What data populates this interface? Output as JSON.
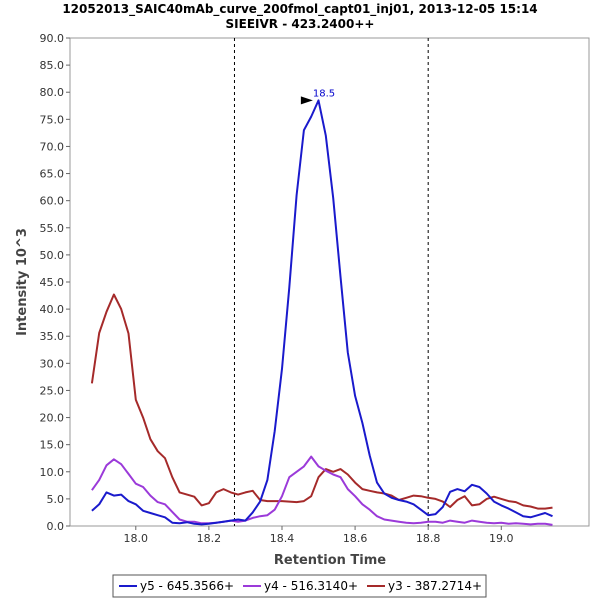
{
  "chart_data": {
    "type": "line",
    "title": "12052013_SAIC40mAb_curve_200fmol_capt01_inj01, 2013-12-05 15:14",
    "subtitle": "SIEEIVR - 423.2400++",
    "xlabel": "Retention Time",
    "ylabel": "Intensity 10^3",
    "xlim": [
      17.82,
      19.24
    ],
    "ylim": [
      0,
      90
    ],
    "xticks": [
      18.0,
      18.2,
      18.4,
      18.6,
      18.8,
      19.0
    ],
    "xtick_labels": [
      "18.0",
      "18.2",
      "18.4",
      "18.6",
      "18.8",
      "19.0"
    ],
    "yticks": [
      0,
      5,
      10,
      15,
      20,
      25,
      30,
      35,
      40,
      45,
      50,
      55,
      60,
      65,
      70,
      75,
      80,
      85,
      90
    ],
    "ytick_labels": [
      "0.0",
      "5.0",
      "10.0",
      "15.0",
      "20.0",
      "25.0",
      "30.0",
      "35.0",
      "40.0",
      "45.0",
      "50.0",
      "55.0",
      "60.0",
      "65.0",
      "70.0",
      "75.0",
      "80.0",
      "85.0",
      "90.0"
    ],
    "grid": false,
    "legend_position": "bottom",
    "vertical_markers": [
      18.27,
      18.8
    ],
    "annotation": {
      "text": "18.5",
      "x": 18.49,
      "y": 78.5,
      "color": "#0000cc"
    },
    "series": [
      {
        "name": "y5 - 645.3566+",
        "color": "#1a1acc",
        "x": [
          17.88,
          17.9,
          17.92,
          17.94,
          17.96,
          17.98,
          18.0,
          18.02,
          18.04,
          18.06,
          18.08,
          18.1,
          18.12,
          18.14,
          18.16,
          18.18,
          18.2,
          18.22,
          18.24,
          18.26,
          18.28,
          18.3,
          18.32,
          18.34,
          18.36,
          18.38,
          18.4,
          18.42,
          18.44,
          18.46,
          18.48,
          18.5,
          18.52,
          18.54,
          18.56,
          18.58,
          18.6,
          18.62,
          18.64,
          18.66,
          18.68,
          18.7,
          18.72,
          18.74,
          18.76,
          18.78,
          18.8,
          18.82,
          18.84,
          18.86,
          18.88,
          18.9,
          18.92,
          18.94,
          18.96,
          18.98,
          19.0,
          19.02,
          19.04,
          19.06,
          19.08,
          19.1,
          19.12,
          19.14
        ],
        "y": [
          2.8,
          4.0,
          6.2,
          5.6,
          5.8,
          4.6,
          4.0,
          2.8,
          2.4,
          2.0,
          1.6,
          0.6,
          0.5,
          0.7,
          0.4,
          0.3,
          0.4,
          0.6,
          0.8,
          1.0,
          1.2,
          1.0,
          2.5,
          4.5,
          8.5,
          17.5,
          29.0,
          44.0,
          61.0,
          73.0,
          75.5,
          78.5,
          72.0,
          60.5,
          46.0,
          32.0,
          24.0,
          19.0,
          13.0,
          8.0,
          6.0,
          5.2,
          4.8,
          4.5,
          4.0,
          3.0,
          2.0,
          2.2,
          3.5,
          6.3,
          6.8,
          6.4,
          7.6,
          7.2,
          6.0,
          4.5,
          3.8,
          3.2,
          2.5,
          1.8,
          1.6,
          2.0,
          2.4,
          1.8
        ]
      },
      {
        "name": "y4 - 516.3140+",
        "color": "#9b3ad9",
        "x": [
          17.88,
          17.9,
          17.92,
          17.94,
          17.96,
          17.98,
          18.0,
          18.02,
          18.04,
          18.06,
          18.08,
          18.1,
          18.12,
          18.14,
          18.16,
          18.18,
          18.2,
          18.22,
          18.24,
          18.26,
          18.28,
          18.3,
          18.32,
          18.34,
          18.36,
          18.38,
          18.4,
          18.42,
          18.44,
          18.46,
          18.48,
          18.5,
          18.52,
          18.54,
          18.56,
          18.58,
          18.6,
          18.62,
          18.64,
          18.66,
          18.68,
          18.7,
          18.72,
          18.74,
          18.76,
          18.78,
          18.8,
          18.82,
          18.84,
          18.86,
          18.88,
          18.9,
          18.92,
          18.94,
          18.96,
          18.98,
          19.0,
          19.02,
          19.04,
          19.06,
          19.08,
          19.1,
          19.12,
          19.14
        ],
        "y": [
          6.6,
          8.5,
          11.2,
          12.3,
          11.4,
          9.6,
          7.8,
          7.2,
          5.6,
          4.4,
          4.0,
          2.6,
          1.2,
          0.8,
          0.8,
          0.5,
          0.5,
          0.6,
          0.8,
          1.0,
          0.8,
          1.0,
          1.5,
          1.8,
          2.0,
          3.0,
          5.5,
          9.0,
          10.0,
          11.0,
          12.8,
          11.0,
          10.2,
          9.5,
          9.0,
          6.8,
          5.5,
          4.0,
          3.0,
          1.8,
          1.2,
          1.0,
          0.8,
          0.6,
          0.5,
          0.6,
          0.8,
          0.8,
          0.6,
          1.0,
          0.8,
          0.6,
          1.0,
          0.8,
          0.6,
          0.5,
          0.6,
          0.4,
          0.5,
          0.4,
          0.3,
          0.4,
          0.4,
          0.2
        ]
      },
      {
        "name": "y3 - 387.2714+",
        "color": "#a52a2a",
        "x": [
          17.88,
          17.9,
          17.92,
          17.94,
          17.96,
          17.98,
          18.0,
          18.02,
          18.04,
          18.06,
          18.08,
          18.1,
          18.12,
          18.14,
          18.16,
          18.18,
          18.2,
          18.22,
          18.24,
          18.26,
          18.28,
          18.3,
          18.32,
          18.34,
          18.36,
          18.38,
          18.4,
          18.42,
          18.44,
          18.46,
          18.48,
          18.5,
          18.52,
          18.54,
          18.56,
          18.58,
          18.6,
          18.62,
          18.64,
          18.66,
          18.68,
          18.7,
          18.72,
          18.74,
          18.76,
          18.78,
          18.8,
          18.82,
          18.84,
          18.86,
          18.88,
          18.9,
          18.92,
          18.94,
          18.96,
          18.98,
          19.0,
          19.02,
          19.04,
          19.06,
          19.08,
          19.1,
          19.12,
          19.14
        ],
        "y": [
          26.3,
          35.6,
          39.5,
          42.7,
          40.0,
          35.5,
          23.3,
          20.0,
          16.0,
          13.8,
          12.5,
          9.0,
          6.2,
          5.8,
          5.4,
          3.8,
          4.2,
          6.2,
          6.8,
          6.2,
          5.8,
          6.2,
          6.5,
          4.8,
          4.6,
          4.6,
          4.6,
          4.5,
          4.4,
          4.6,
          5.5,
          9.0,
          10.5,
          10.0,
          10.5,
          9.5,
          8.0,
          6.8,
          6.5,
          6.2,
          6.0,
          5.6,
          4.8,
          5.2,
          5.6,
          5.5,
          5.2,
          5.0,
          4.5,
          3.5,
          4.8,
          5.5,
          3.8,
          4.0,
          5.0,
          5.4,
          5.0,
          4.6,
          4.4,
          3.8,
          3.6,
          3.2,
          3.2,
          3.4
        ]
      }
    ]
  }
}
